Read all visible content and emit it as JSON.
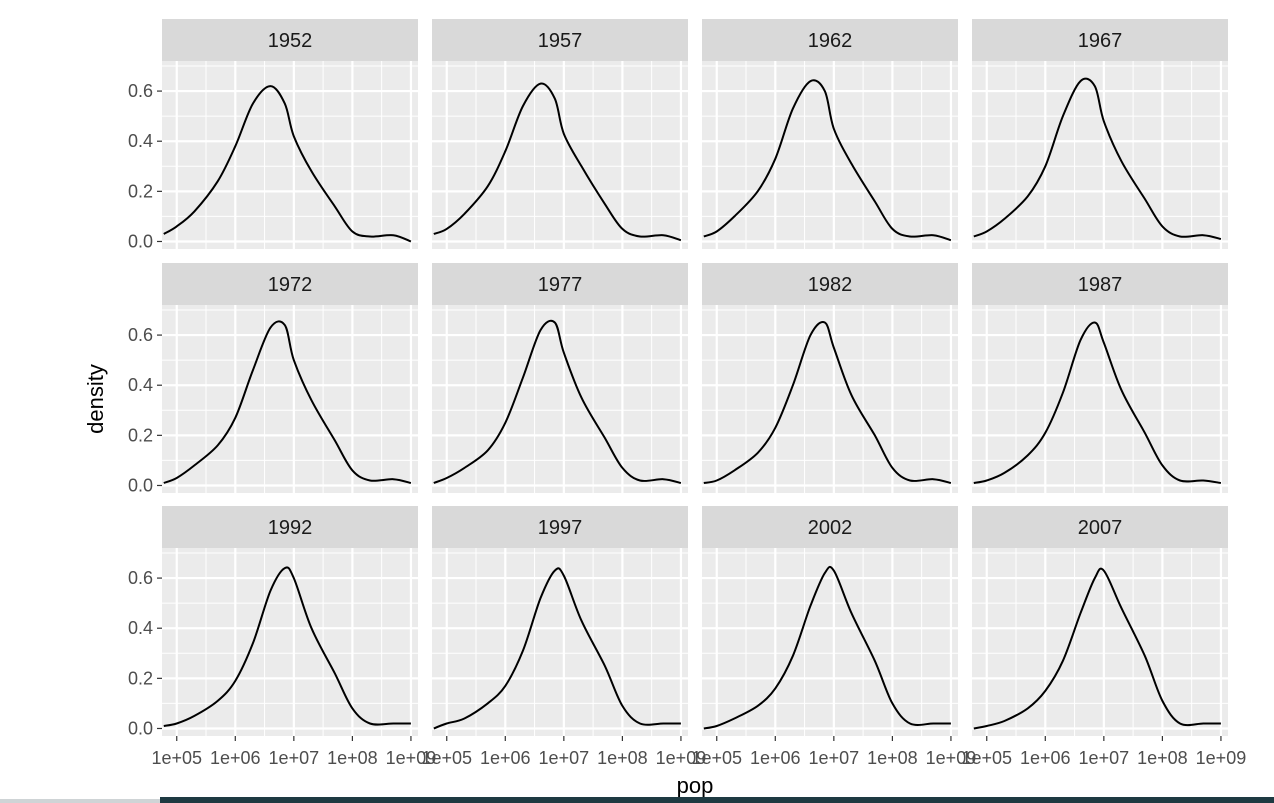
{
  "chart_data": {
    "type": "line",
    "title": "",
    "xlabel": "pop",
    "ylabel": "density",
    "x_scale": "log10",
    "xlim": [
      56000,
      1320000000
    ],
    "ylim": [
      -0.03,
      0.72
    ],
    "x_tick_values": [
      100000,
      1000000,
      10000000,
      100000000,
      1000000000
    ],
    "x_tick_labels": [
      "1e+05",
      "1e+06",
      "1e+07",
      "1e+08",
      "1e+09"
    ],
    "y_tick_values": [
      0,
      0.2,
      0.4,
      0.6
    ],
    "y_tick_labels": [
      "0.0",
      "0.2",
      "0.4",
      "0.6"
    ],
    "grid": true,
    "colors": {
      "panel": "#ebebeb",
      "strip": "#d9d9d9",
      "grid": "#ffffff",
      "line": "#000000"
    },
    "facets": [
      {
        "label": "1952",
        "x": [
          60000,
          100000,
          200000,
          500000,
          1000000,
          2000000,
          4000000,
          7000000,
          10000000,
          20000000,
          50000000,
          100000000,
          200000000,
          500000000,
          1000000000
        ],
        "y": [
          0.03,
          0.06,
          0.12,
          0.24,
          0.38,
          0.55,
          0.62,
          0.55,
          0.42,
          0.28,
          0.14,
          0.04,
          0.02,
          0.025,
          0.0
        ]
      },
      {
        "label": "1957",
        "x": [
          60000,
          100000,
          200000,
          500000,
          1000000,
          2000000,
          4000000,
          7000000,
          10000000,
          20000000,
          50000000,
          100000000,
          200000000,
          500000000,
          1000000000
        ],
        "y": [
          0.03,
          0.05,
          0.11,
          0.22,
          0.36,
          0.54,
          0.63,
          0.57,
          0.43,
          0.3,
          0.15,
          0.05,
          0.02,
          0.025,
          0.005
        ]
      },
      {
        "label": "1962",
        "x": [
          60000,
          100000,
          200000,
          500000,
          1000000,
          2000000,
          4000000,
          7000000,
          10000000,
          20000000,
          50000000,
          100000000,
          200000000,
          500000000,
          1000000000
        ],
        "y": [
          0.02,
          0.04,
          0.1,
          0.2,
          0.33,
          0.53,
          0.64,
          0.6,
          0.45,
          0.31,
          0.16,
          0.05,
          0.02,
          0.025,
          0.005
        ]
      },
      {
        "label": "1967",
        "x": [
          60000,
          100000,
          200000,
          500000,
          1000000,
          2000000,
          4000000,
          7000000,
          10000000,
          20000000,
          50000000,
          100000000,
          200000000,
          500000000,
          1000000000
        ],
        "y": [
          0.02,
          0.04,
          0.09,
          0.18,
          0.3,
          0.5,
          0.64,
          0.62,
          0.48,
          0.32,
          0.17,
          0.06,
          0.02,
          0.025,
          0.01
        ]
      },
      {
        "label": "1972",
        "x": [
          60000,
          100000,
          200000,
          500000,
          1000000,
          2000000,
          4000000,
          7000000,
          10000000,
          20000000,
          50000000,
          100000000,
          200000000,
          500000000,
          1000000000
        ],
        "y": [
          0.01,
          0.03,
          0.08,
          0.16,
          0.27,
          0.46,
          0.63,
          0.64,
          0.5,
          0.34,
          0.18,
          0.06,
          0.02,
          0.025,
          0.01
        ]
      },
      {
        "label": "1977",
        "x": [
          60000,
          100000,
          200000,
          500000,
          1000000,
          2000000,
          4000000,
          7000000,
          10000000,
          20000000,
          50000000,
          100000000,
          200000000,
          500000000,
          1000000000
        ],
        "y": [
          0.01,
          0.03,
          0.07,
          0.14,
          0.25,
          0.43,
          0.62,
          0.65,
          0.53,
          0.35,
          0.19,
          0.07,
          0.02,
          0.025,
          0.01
        ]
      },
      {
        "label": "1982",
        "x": [
          60000,
          100000,
          200000,
          500000,
          1000000,
          2000000,
          4000000,
          7000000,
          10000000,
          20000000,
          50000000,
          100000000,
          200000000,
          500000000,
          1000000000
        ],
        "y": [
          0.01,
          0.02,
          0.06,
          0.13,
          0.23,
          0.4,
          0.6,
          0.65,
          0.55,
          0.36,
          0.2,
          0.07,
          0.02,
          0.025,
          0.01
        ]
      },
      {
        "label": "1987",
        "x": [
          60000,
          100000,
          200000,
          500000,
          1000000,
          2000000,
          4000000,
          7000000,
          10000000,
          20000000,
          50000000,
          100000000,
          200000000,
          500000000,
          1000000000
        ],
        "y": [
          0.01,
          0.02,
          0.05,
          0.12,
          0.21,
          0.37,
          0.58,
          0.65,
          0.57,
          0.38,
          0.21,
          0.08,
          0.02,
          0.02,
          0.01
        ]
      },
      {
        "label": "1992",
        "x": [
          60000,
          100000,
          200000,
          500000,
          1000000,
          2000000,
          4000000,
          7000000,
          10000000,
          20000000,
          50000000,
          100000000,
          200000000,
          500000000,
          1000000000
        ],
        "y": [
          0.01,
          0.02,
          0.05,
          0.11,
          0.19,
          0.34,
          0.55,
          0.64,
          0.6,
          0.4,
          0.22,
          0.08,
          0.02,
          0.02,
          0.02
        ]
      },
      {
        "label": "1997",
        "x": [
          60000,
          100000,
          200000,
          500000,
          1000000,
          2000000,
          4000000,
          7000000,
          10000000,
          20000000,
          50000000,
          100000000,
          200000000,
          500000000,
          1000000000
        ],
        "y": [
          0.0,
          0.02,
          0.04,
          0.1,
          0.17,
          0.31,
          0.52,
          0.63,
          0.61,
          0.43,
          0.25,
          0.09,
          0.02,
          0.02,
          0.02
        ]
      },
      {
        "label": "2002",
        "x": [
          60000,
          100000,
          200000,
          500000,
          1000000,
          2000000,
          4000000,
          7000000,
          10000000,
          20000000,
          50000000,
          100000000,
          200000000,
          500000000,
          1000000000
        ],
        "y": [
          0.0,
          0.01,
          0.04,
          0.09,
          0.16,
          0.29,
          0.49,
          0.62,
          0.63,
          0.46,
          0.27,
          0.1,
          0.02,
          0.02,
          0.02
        ]
      },
      {
        "label": "2007",
        "x": [
          60000,
          100000,
          200000,
          500000,
          1000000,
          2000000,
          4000000,
          7000000,
          10000000,
          20000000,
          50000000,
          100000000,
          200000000,
          500000000,
          1000000000
        ],
        "y": [
          0.0,
          0.01,
          0.03,
          0.08,
          0.15,
          0.27,
          0.46,
          0.6,
          0.63,
          0.48,
          0.29,
          0.11,
          0.02,
          0.02,
          0.02
        ]
      }
    ]
  }
}
